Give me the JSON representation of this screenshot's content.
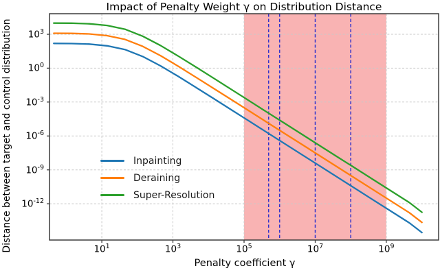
{
  "chart_data": {
    "type": "line",
    "title": "Impact of Penalty Weight γ on Distribution Distance",
    "xlabel": "Penalty coefficient γ",
    "ylabel": "Distance between target and control distribution",
    "x_scale": "log",
    "y_scale": "log",
    "x_tick_exponents": [
      1,
      3,
      5,
      7,
      9
    ],
    "y_tick_exponents": [
      3,
      0,
      -3,
      -6,
      -9,
      -12
    ],
    "x_log_range": [
      -0.47,
      10.47
    ],
    "y_log_range": [
      -15.21,
      4.82
    ],
    "grid": {
      "color": "#c9c9c9",
      "style": "dashed",
      "on": true
    },
    "shaded_region": {
      "x_from_log10": 5,
      "x_to_log10": 9,
      "color": "#f9b3b3"
    },
    "vlines": {
      "x_log10": [
        5.69,
        6.0,
        7.0,
        8.0
      ],
      "color": "#3333cc",
      "style": "dashed"
    },
    "log_x": [
      -0.35,
      0.15,
      0.65,
      1.15,
      1.65,
      2.15,
      2.65,
      3.15,
      3.65,
      4.15,
      4.65,
      5.15,
      5.65,
      6.15,
      6.65,
      7.15,
      7.65,
      8.15,
      8.65,
      9.15,
      9.65,
      10.0
    ],
    "series": [
      {
        "name": "Inpainting",
        "color": "#1f77b4",
        "log_y": [
          2.19,
          2.18,
          2.13,
          1.98,
          1.65,
          1.03,
          0.21,
          -0.73,
          -1.71,
          -2.7,
          -3.7,
          -4.7,
          -5.7,
          -6.7,
          -7.7,
          -8.7,
          -9.7,
          -10.7,
          -11.7,
          -12.7,
          -13.7,
          -14.55
        ]
      },
      {
        "name": "Deraining",
        "color": "#ff7f0e",
        "log_y": [
          3.09,
          3.08,
          3.03,
          2.88,
          2.55,
          1.93,
          1.11,
          0.17,
          -0.81,
          -1.8,
          -2.8,
          -3.8,
          -4.8,
          -5.8,
          -6.8,
          -7.8,
          -8.8,
          -9.8,
          -10.8,
          -11.8,
          -12.8,
          -13.65
        ]
      },
      {
        "name": "Super-Resolution",
        "color": "#2ca02c",
        "log_y": [
          3.99,
          3.98,
          3.93,
          3.78,
          3.45,
          2.83,
          2.01,
          1.07,
          0.09,
          -0.9,
          -1.9,
          -2.9,
          -3.9,
          -4.9,
          -5.9,
          -6.9,
          -7.9,
          -8.9,
          -9.9,
          -10.9,
          -11.9,
          -12.75
        ]
      }
    ],
    "legend": {
      "frame": false,
      "location": "inside-left"
    }
  }
}
